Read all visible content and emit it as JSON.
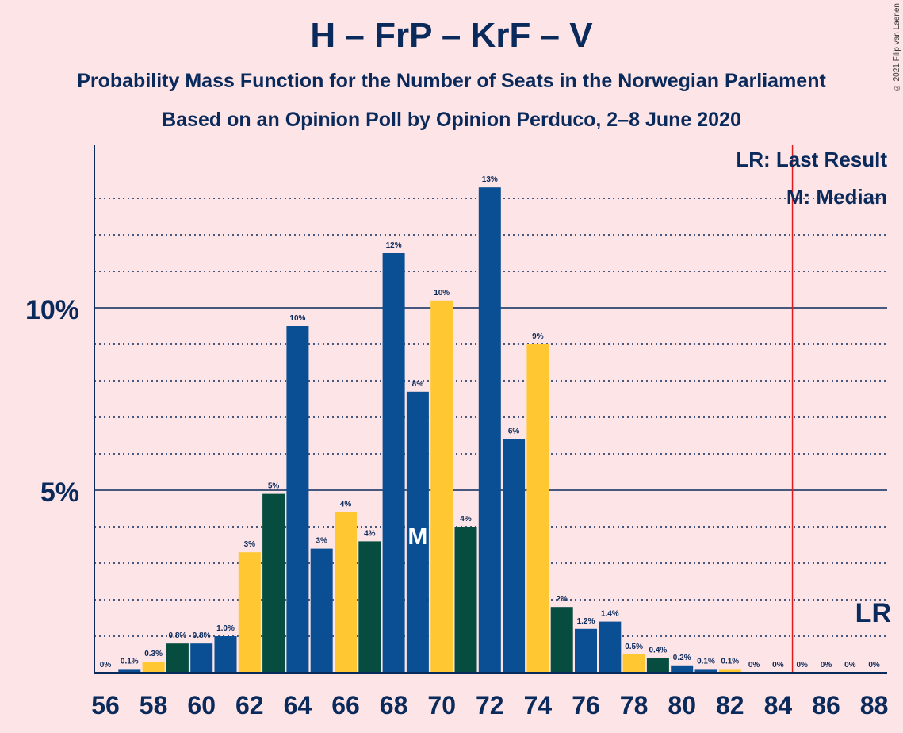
{
  "title": "H – FrP – KrF – V",
  "subtitle1": "Probability Mass Function for the Number of Seats in the Norwegian Parliament",
  "subtitle2": "Based on an Opinion Poll by Opinion Perduco, 2–8 June 2020",
  "copyright": "© 2021 Filip van Laenen",
  "legend": {
    "lr": "LR: Last Result",
    "median": "M: Median"
  },
  "markers": {
    "median_label": "M",
    "lr_label": "LR",
    "median_seat": 69,
    "last_result_seat": 85
  },
  "colors": {
    "background": "#fde4e6",
    "blue": "#0a4f94",
    "yellow": "#ffc832",
    "green": "#064d40",
    "text": "#0b2a5c",
    "lr_line": "#e31a1c"
  },
  "chart_data": {
    "type": "bar",
    "x": [
      56,
      57,
      58,
      59,
      60,
      61,
      62,
      63,
      64,
      65,
      66,
      67,
      68,
      69,
      70,
      71,
      72,
      73,
      74,
      75,
      76,
      77,
      78,
      79,
      80,
      81,
      82,
      83,
      84,
      85,
      86,
      87,
      88
    ],
    "values": [
      0,
      0.1,
      0.3,
      0.8,
      0.8,
      1.0,
      3.3,
      4.9,
      9.5,
      3.4,
      4.4,
      3.6,
      11.5,
      7.7,
      10.2,
      4.0,
      13.3,
      6.4,
      9.0,
      1.8,
      1.2,
      1.4,
      0.5,
      0.4,
      0.2,
      0.1,
      0.1,
      0,
      0,
      0,
      0,
      0,
      0
    ],
    "labels": [
      "0%",
      "0.1%",
      "0.3%",
      "0.8%",
      "0.8%",
      "1.0%",
      "3%",
      "5%",
      "10%",
      "3%",
      "4%",
      "4%",
      "12%",
      "8%",
      "10%",
      "4%",
      "13%",
      "6%",
      "9%",
      "2%",
      "1.2%",
      "1.4%",
      "0.5%",
      "0.4%",
      "0.2%",
      "0.1%",
      "0.1%",
      "0%",
      "0%",
      "0%",
      "0%",
      "0%",
      "0%"
    ],
    "bar_colors": [
      "blue",
      "blue",
      "yellow",
      "green",
      "blue",
      "blue",
      "yellow",
      "green",
      "blue",
      "blue",
      "yellow",
      "green",
      "blue",
      "blue",
      "yellow",
      "green",
      "blue",
      "blue",
      "yellow",
      "green",
      "blue",
      "blue",
      "yellow",
      "green",
      "blue",
      "blue",
      "yellow",
      "green",
      "blue",
      "blue",
      "yellow",
      "green",
      "blue"
    ],
    "x_ticks": [
      56,
      58,
      60,
      62,
      64,
      66,
      68,
      70,
      72,
      74,
      76,
      78,
      80,
      82,
      84,
      86,
      88
    ],
    "y_ticks": [
      5,
      10
    ],
    "y_tick_labels": [
      "5%",
      "10%"
    ],
    "ylim": [
      0,
      14.5
    ],
    "grid": "dotted every 1%, solid at 5% and 10%"
  }
}
